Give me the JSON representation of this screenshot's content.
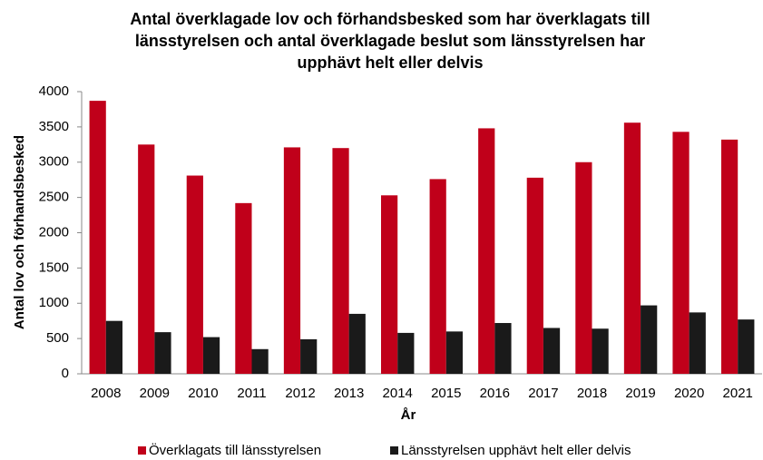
{
  "chart_data": {
    "type": "bar",
    "title": [
      "Antal överklagade lov och förhandsbesked som har överklagats till",
      "länsstyrelsen och antal överklagade beslut som länsstyrelsen har",
      "upphävt helt eller delvis"
    ],
    "xlabel": "År",
    "ylabel": "Antal lov och förhandsbesked",
    "categories": [
      "2008",
      "2009",
      "2010",
      "2011",
      "2012",
      "2013",
      "2014",
      "2015",
      "2016",
      "2017",
      "2018",
      "2019",
      "2020",
      "2021"
    ],
    "series": [
      {
        "name": "Överklagats till länsstyrelsen",
        "color": "#c0001a",
        "values": [
          3870,
          3250,
          2810,
          2420,
          3210,
          3200,
          2530,
          2760,
          3480,
          2780,
          3000,
          3560,
          3430,
          3320
        ]
      },
      {
        "name": "Länsstyrelsen upphävt helt eller delvis",
        "color": "#1a1a1a",
        "values": [
          750,
          590,
          520,
          350,
          490,
          850,
          580,
          600,
          720,
          650,
          640,
          970,
          870,
          770
        ]
      }
    ],
    "ylim": [
      0,
      4000
    ],
    "yticks": [
      0,
      500,
      1000,
      1500,
      2000,
      2500,
      3000,
      3500,
      4000
    ],
    "grid": false,
    "legend": "bottom"
  }
}
